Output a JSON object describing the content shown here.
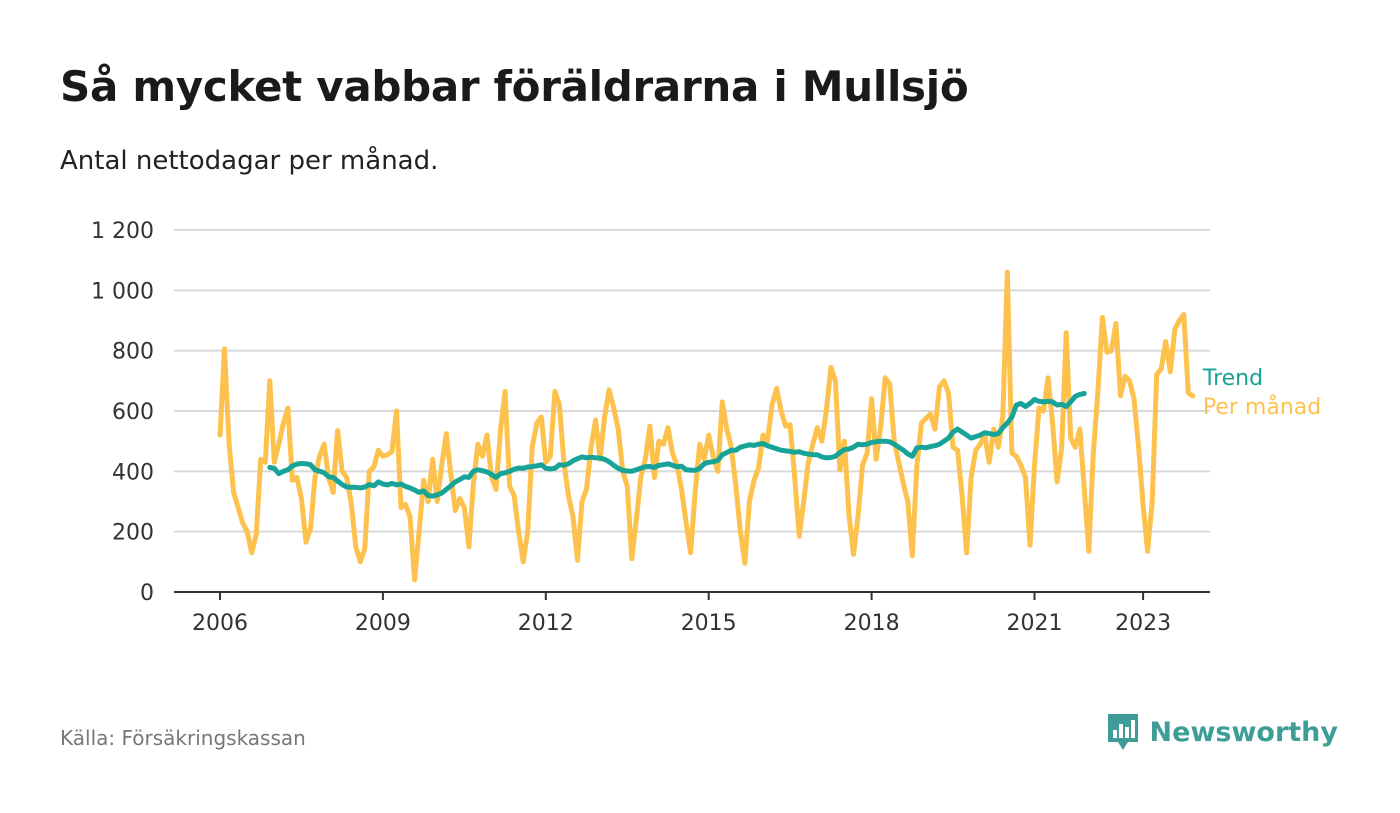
{
  "header": {
    "title": "Så mycket vabbar föräldrarna i Mullsjö",
    "subtitle": "Antal nettodagar per månad."
  },
  "footer": {
    "source": "Källa: Försäkringskassan",
    "brand": "Newsworthy"
  },
  "colors": {
    "trend": "#17a398",
    "per_manad": "#fdc24e",
    "grid": "#d9d9d9",
    "axis": "#333333",
    "brand": "#3e9e97"
  },
  "chart_data": {
    "type": "line",
    "title": "Så mycket vabbar föräldrarna i Mullsjö",
    "subtitle": "Antal nettodagar per månad.",
    "xlabel": "",
    "ylabel": "",
    "x_range": [
      "2005-09",
      "2024-09"
    ],
    "ylim": [
      0,
      1200
    ],
    "yticks": [
      0,
      200,
      400,
      600,
      800,
      1000,
      1200
    ],
    "ytick_labels": [
      "0",
      "200",
      "400",
      "600",
      "800",
      "1 000",
      "1 200"
    ],
    "xticks": [
      "2006",
      "2009",
      "2012",
      "2015",
      "2018",
      "2021",
      "2023"
    ],
    "grid": true,
    "legend_placement": "right, at line ends",
    "series": [
      {
        "name": "Trend",
        "start": "2006-12",
        "values": [
          413,
          410,
          392,
          400,
          405,
          418,
          424,
          426,
          425,
          422,
          405,
          400,
          395,
          382,
          380,
          368,
          356,
          348,
          347,
          347,
          345,
          348,
          356,
          352,
          365,
          358,
          355,
          360,
          355,
          358,
          350,
          345,
          338,
          330,
          335,
          320,
          318,
          322,
          328,
          340,
          352,
          365,
          373,
          382,
          380,
          400,
          405,
          402,
          398,
          390,
          380,
          392,
          395,
          400,
          407,
          411,
          410,
          414,
          416,
          418,
          422,
          410,
          408,
          410,
          422,
          420,
          425,
          435,
          442,
          448,
          445,
          447,
          445,
          444,
          440,
          432,
          420,
          410,
          403,
          401,
          400,
          405,
          410,
          415,
          416,
          413,
          420,
          422,
          425,
          420,
          415,
          417,
          405,
          404,
          403,
          410,
          425,
          430,
          432,
          436,
          455,
          462,
          470,
          470,
          480,
          484,
          488,
          486,
          490,
          492,
          485,
          480,
          475,
          470,
          468,
          466,
          463,
          465,
          460,
          457,
          455,
          455,
          448,
          445,
          446,
          450,
          462,
          472,
          474,
          480,
          490,
          488,
          490,
          496,
          498,
          500,
          500,
          498,
          490,
          480,
          470,
          458,
          450,
          478,
          480,
          478,
          482,
          485,
          490,
          500,
          510,
          530,
          540,
          530,
          520,
          510,
          515,
          520,
          528,
          525,
          522,
          525,
          545,
          560,
          580,
          620,
          625,
          615,
          625,
          638,
          632,
          630,
          632,
          630,
          620,
          622,
          615,
          630,
          648,
          655,
          658
        ]
      },
      {
        "name": "Per månad",
        "start": "2006-01",
        "values": [
          520,
          806,
          490,
          330,
          280,
          230,
          200,
          130,
          190,
          440,
          430,
          700,
          430,
          490,
          560,
          610,
          370,
          380,
          310,
          165,
          210,
          380,
          450,
          490,
          380,
          330,
          535,
          400,
          380,
          295,
          150,
          100,
          145,
          400,
          415,
          470,
          450,
          455,
          465,
          600,
          280,
          290,
          250,
          40,
          200,
          370,
          300,
          440,
          300,
          420,
          525,
          390,
          270,
          310,
          280,
          150,
          360,
          490,
          450,
          520,
          380,
          340,
          540,
          665,
          350,
          320,
          200,
          100,
          200,
          480,
          560,
          580,
          430,
          450,
          665,
          620,
          430,
          320,
          250,
          105,
          300,
          340,
          480,
          570,
          440,
          580,
          670,
          610,
          540,
          400,
          350,
          110,
          240,
          380,
          440,
          550,
          380,
          500,
          490,
          545,
          460,
          420,
          340,
          230,
          130,
          330,
          490,
          440,
          520,
          450,
          400,
          630,
          540,
          480,
          350,
          200,
          95,
          300,
          370,
          410,
          520,
          500,
          620,
          675,
          600,
          550,
          555,
          380,
          185,
          300,
          430,
          490,
          545,
          500,
          600,
          745,
          700,
          405,
          500,
          255,
          125,
          250,
          420,
          460,
          640,
          440,
          545,
          710,
          690,
          500,
          430,
          360,
          300,
          120,
          420,
          560,
          575,
          590,
          540,
          680,
          700,
          660,
          480,
          470,
          320,
          130,
          380,
          470,
          490,
          520,
          430,
          540,
          480,
          580,
          1060,
          460,
          450,
          420,
          380,
          155,
          420,
          610,
          600,
          710,
          560,
          365,
          480,
          860,
          510,
          480,
          540,
          340,
          135,
          460,
          660,
          910,
          795,
          800,
          890,
          650,
          715,
          700,
          640,
          480,
          290,
          135,
          300,
          720,
          740,
          830,
          730,
          870,
          900,
          920,
          660,
          650
        ]
      }
    ]
  }
}
